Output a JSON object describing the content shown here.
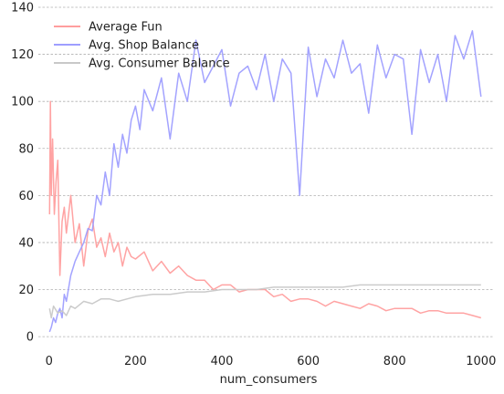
{
  "chart_data": {
    "type": "line",
    "title": "",
    "xlabel": "num_consumers",
    "ylabel": "",
    "xlim": [
      -25,
      1030
    ],
    "ylim": [
      -5,
      140
    ],
    "xticks": [
      0,
      200,
      400,
      600,
      800,
      1000
    ],
    "yticks": [
      0,
      20,
      40,
      60,
      80,
      100,
      120,
      140
    ],
    "xtick_labels": [
      "0",
      "200",
      "400",
      "600",
      "800",
      "1000"
    ],
    "ytick_labels": [
      "0",
      "20",
      "40",
      "60",
      "80",
      "100",
      "120",
      "140"
    ],
    "grid": "horizontal-dashed",
    "legend_position": "top-left",
    "series": [
      {
        "name": "Average Fun",
        "color": "#ff9e9e",
        "x": [
          1,
          3,
          5,
          8,
          12,
          16,
          20,
          25,
          30,
          35,
          40,
          50,
          60,
          70,
          80,
          90,
          100,
          110,
          120,
          130,
          140,
          150,
          160,
          170,
          180,
          190,
          200,
          220,
          240,
          260,
          280,
          300,
          320,
          340,
          360,
          380,
          400,
          420,
          440,
          460,
          480,
          500,
          520,
          540,
          560,
          580,
          600,
          620,
          640,
          660,
          680,
          700,
          720,
          740,
          760,
          780,
          800,
          820,
          840,
          860,
          880,
          900,
          920,
          940,
          960,
          980,
          1000
        ],
        "values": [
          52,
          100,
          60,
          84,
          52,
          66,
          75,
          26,
          49,
          55,
          44,
          60,
          40,
          48,
          30,
          45,
          50,
          38,
          42,
          34,
          44,
          36,
          40,
          30,
          38,
          34,
          33,
          36,
          28,
          32,
          27,
          30,
          26,
          24,
          24,
          20,
          22,
          22,
          19,
          20,
          20,
          20,
          17,
          18,
          15,
          16,
          16,
          15,
          13,
          15,
          14,
          13,
          12,
          14,
          13,
          11,
          12,
          12,
          12,
          10,
          11,
          11,
          10,
          10,
          10,
          9,
          8
        ]
      },
      {
        "name": "Avg. Shop Balance",
        "color": "#9e9eff",
        "x": [
          1,
          5,
          10,
          15,
          20,
          25,
          30,
          35,
          40,
          50,
          60,
          70,
          80,
          90,
          100,
          110,
          120,
          130,
          140,
          150,
          160,
          170,
          180,
          190,
          200,
          210,
          220,
          240,
          260,
          280,
          300,
          320,
          340,
          360,
          380,
          400,
          420,
          440,
          460,
          480,
          500,
          520,
          540,
          560,
          580,
          600,
          620,
          640,
          660,
          680,
          700,
          720,
          740,
          760,
          780,
          800,
          820,
          840,
          860,
          880,
          900,
          920,
          940,
          960,
          980,
          1000
        ],
        "values": [
          2,
          4,
          8,
          6,
          10,
          12,
          8,
          18,
          15,
          26,
          32,
          36,
          40,
          46,
          45,
          60,
          56,
          70,
          60,
          82,
          72,
          86,
          78,
          92,
          98,
          88,
          105,
          96,
          110,
          84,
          112,
          100,
          126,
          108,
          115,
          122,
          98,
          112,
          115,
          105,
          120,
          100,
          118,
          112,
          60,
          123,
          102,
          118,
          110,
          126,
          112,
          116,
          95,
          124,
          110,
          120,
          118,
          86,
          122,
          108,
          120,
          100,
          128,
          118,
          130,
          102
        ]
      },
      {
        "name": "Avg. Consumer Balance",
        "color": "#c8c8c8",
        "x": [
          1,
          5,
          10,
          20,
          30,
          40,
          50,
          60,
          80,
          100,
          120,
          140,
          160,
          180,
          200,
          240,
          280,
          320,
          360,
          400,
          440,
          480,
          520,
          560,
          600,
          640,
          680,
          720,
          760,
          800,
          840,
          880,
          920,
          960,
          1000
        ],
        "values": [
          12,
          8,
          13,
          10,
          11,
          9,
          13,
          12,
          15,
          14,
          16,
          16,
          15,
          16,
          17,
          18,
          18,
          19,
          19,
          20,
          20,
          20,
          21,
          21,
          21,
          21,
          21,
          22,
          22,
          22,
          22,
          22,
          22,
          22,
          22
        ]
      }
    ]
  }
}
